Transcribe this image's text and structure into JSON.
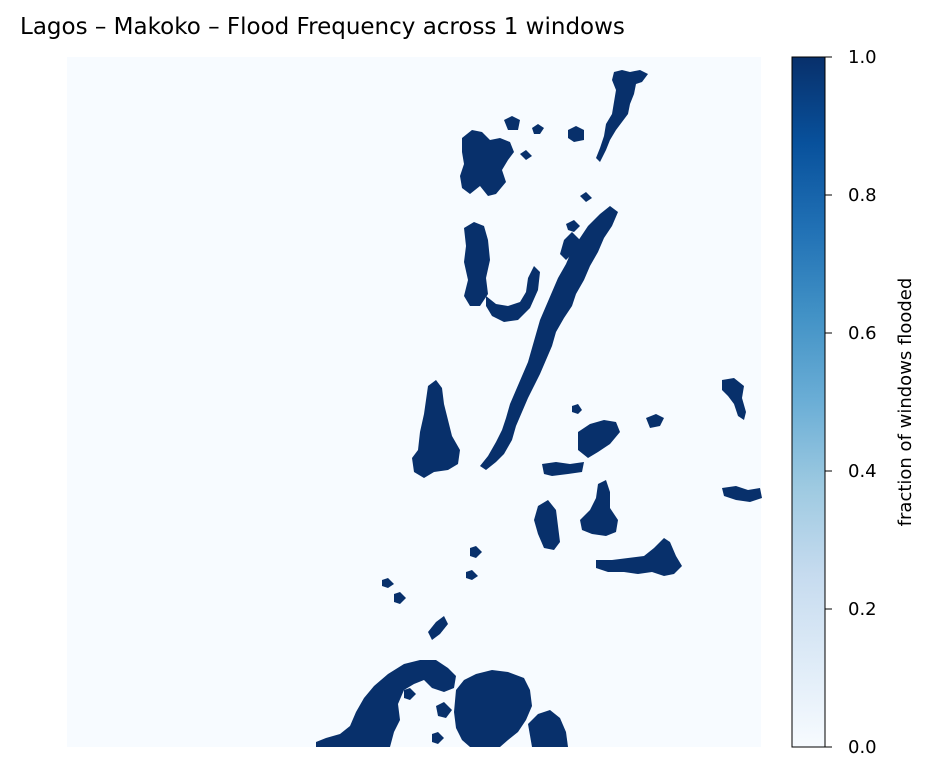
{
  "chart_data": {
    "type": "heatmap",
    "title": "Lagos – Makoko – Flood Frequency across 1 windows",
    "colorbar": {
      "label": "fraction of windows flooded",
      "range": [
        0,
        1
      ],
      "ticks": [
        "0.0",
        "0.2",
        "0.4",
        "0.6",
        "0.8",
        "1.0"
      ],
      "colormap": [
        "#f7fbff",
        "#deebf7",
        "#c6dbef",
        "#9ecae1",
        "#6baed6",
        "#4292c6",
        "#2171b5",
        "#08519c",
        "#08306b"
      ]
    },
    "axes_visible": false,
    "grid": false,
    "value_note": "cells are binary: 0 (not flooded) or 1 (flooded)",
    "flooded_regions": [
      {
        "name": "upper-channel",
        "value": 1.0
      },
      {
        "name": "upper-cluster",
        "value": 1.0
      },
      {
        "name": "central-diagonal-channel",
        "value": 1.0
      },
      {
        "name": "left-pool",
        "value": 1.0
      },
      {
        "name": "right-patches",
        "value": 1.0
      },
      {
        "name": "southern-lagoon",
        "value": 1.0
      }
    ]
  }
}
